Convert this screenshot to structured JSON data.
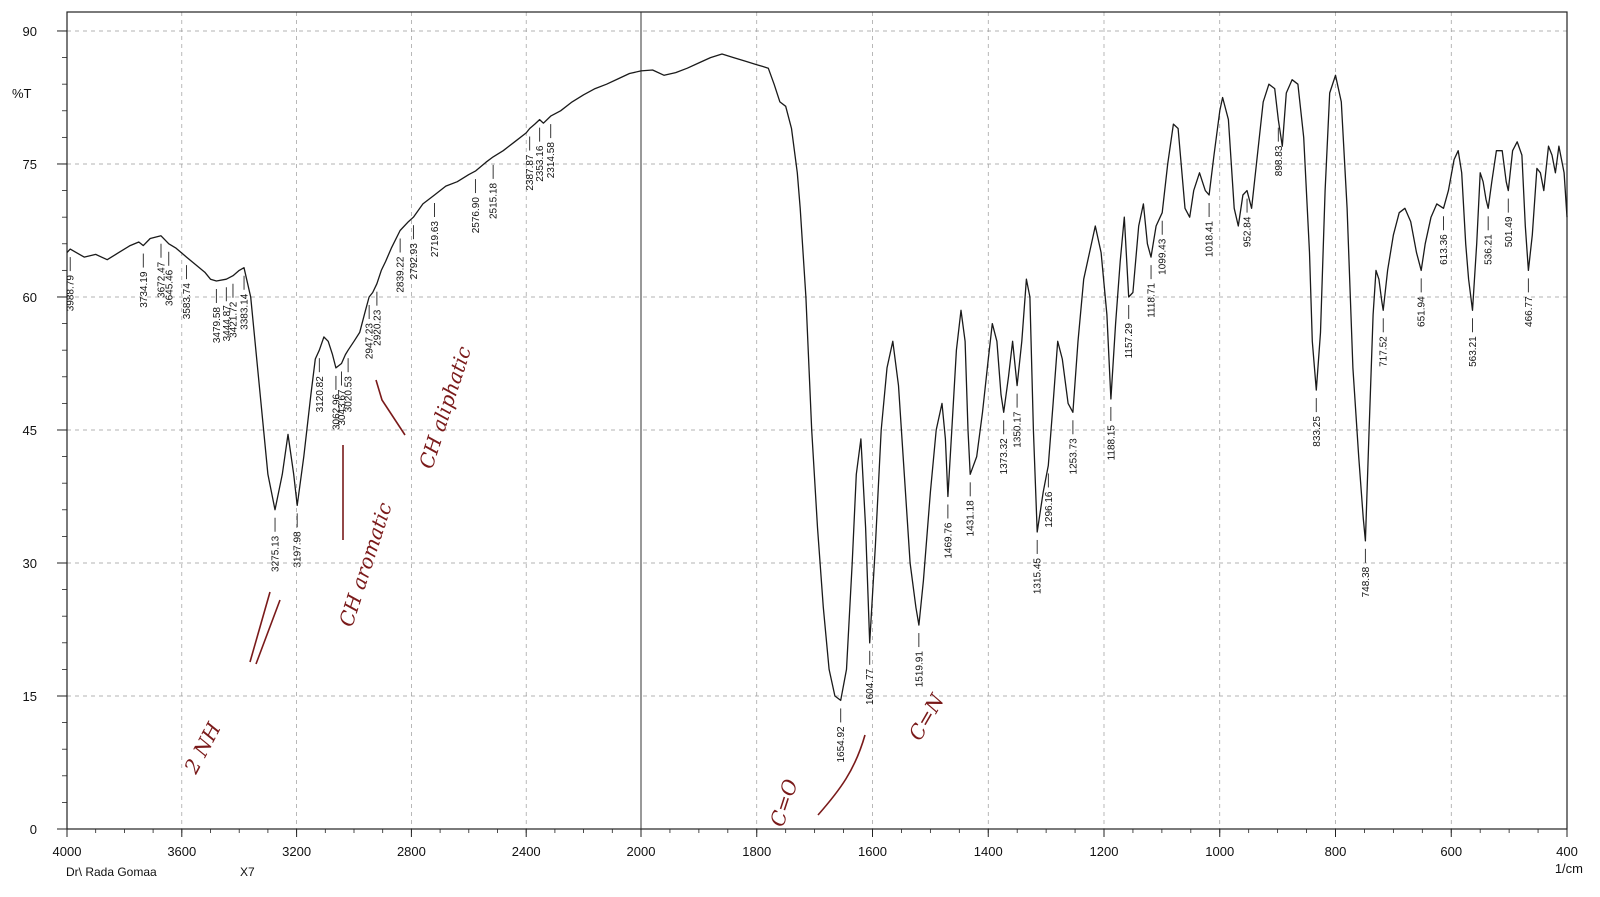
{
  "chart_data": {
    "type": "line",
    "ylabel": "%T",
    "xunit": "1/cm",
    "xlim": [
      4000,
      400
    ],
    "ylim": [
      0,
      92
    ],
    "x_ticks": [
      4000,
      3600,
      3200,
      2800,
      2400,
      2000,
      1800,
      1600,
      1400,
      1200,
      1000,
      800,
      600,
      400
    ],
    "y_ticks": [
      0,
      15,
      30,
      45,
      60,
      75,
      90
    ],
    "grid": true,
    "footer_left": "Dr\\ Rada Gomaa",
    "footer_code": "X7",
    "series": [
      {
        "color": "#1a1a1a",
        "points": [
          [
            4000,
            65.0
          ],
          [
            3988.79,
            65.4
          ],
          [
            3940,
            64.5
          ],
          [
            3900,
            64.8
          ],
          [
            3860,
            64.2
          ],
          [
            3820,
            65.0
          ],
          [
            3780,
            65.8
          ],
          [
            3750,
            66.2
          ],
          [
            3734.19,
            65.8
          ],
          [
            3710,
            66.6
          ],
          [
            3672.47,
            66.9
          ],
          [
            3645.46,
            66.0
          ],
          [
            3620,
            65.5
          ],
          [
            3583.74,
            64.5
          ],
          [
            3550,
            63.6
          ],
          [
            3520,
            62.8
          ],
          [
            3500,
            62.0
          ],
          [
            3479.58,
            61.8
          ],
          [
            3444.87,
            62.0
          ],
          [
            3421.72,
            62.4
          ],
          [
            3400,
            63.0
          ],
          [
            3383.14,
            63.3
          ],
          [
            3360,
            60.0
          ],
          [
            3330,
            50.0
          ],
          [
            3300,
            40.0
          ],
          [
            3275.13,
            36.0
          ],
          [
            3250,
            40.0
          ],
          [
            3230,
            44.5
          ],
          [
            3210,
            40.0
          ],
          [
            3197.98,
            36.5
          ],
          [
            3175,
            42.0
          ],
          [
            3150,
            49.0
          ],
          [
            3135,
            53.0
          ],
          [
            3120.82,
            54.0
          ],
          [
            3105,
            55.5
          ],
          [
            3090,
            55.0
          ],
          [
            3075,
            53.5
          ],
          [
            3062.96,
            52.0
          ],
          [
            3043.67,
            52.5
          ],
          [
            3030,
            53.5
          ],
          [
            3020.53,
            54.0
          ],
          [
            3000,
            55.0
          ],
          [
            2980,
            56.0
          ],
          [
            2960,
            58.5
          ],
          [
            2947.23,
            60.0
          ],
          [
            2935,
            60.5
          ],
          [
            2920.23,
            61.5
          ],
          [
            2905,
            63.0
          ],
          [
            2890,
            64.0
          ],
          [
            2870,
            65.5
          ],
          [
            2839.22,
            67.5
          ],
          [
            2810,
            68.5
          ],
          [
            2792.93,
            69.0
          ],
          [
            2760,
            70.5
          ],
          [
            2719.63,
            71.5
          ],
          [
            2680,
            72.5
          ],
          [
            2640,
            73.0
          ],
          [
            2600,
            73.8
          ],
          [
            2576.9,
            74.2
          ],
          [
            2540,
            75.2
          ],
          [
            2515.18,
            75.8
          ],
          [
            2480,
            76.5
          ],
          [
            2440,
            77.5
          ],
          [
            2400,
            78.5
          ],
          [
            2387.87,
            79.0
          ],
          [
            2370,
            79.5
          ],
          [
            2353.16,
            80.0
          ],
          [
            2340,
            79.6
          ],
          [
            2314.58,
            80.4
          ],
          [
            2280,
            81.0
          ],
          [
            2240,
            82.0
          ],
          [
            2200,
            82.8
          ],
          [
            2160,
            83.5
          ],
          [
            2120,
            84.0
          ],
          [
            2080,
            84.6
          ],
          [
            2040,
            85.2
          ],
          [
            2000,
            85.5
          ],
          [
            1980,
            85.6
          ],
          [
            1960,
            85.0
          ],
          [
            1940,
            85.3
          ],
          [
            1920,
            85.8
          ],
          [
            1900,
            86.4
          ],
          [
            1880,
            87.0
          ],
          [
            1860,
            87.4
          ],
          [
            1840,
            87.0
          ],
          [
            1820,
            86.6
          ],
          [
            1800,
            86.2
          ],
          [
            1790,
            86.0
          ],
          [
            1780,
            85.8
          ],
          [
            1770,
            84.0
          ],
          [
            1760,
            82.0
          ],
          [
            1750,
            81.5
          ],
          [
            1740,
            79.0
          ],
          [
            1730,
            74.0
          ],
          [
            1725,
            70.0
          ],
          [
            1715,
            60.0
          ],
          [
            1705,
            45.0
          ],
          [
            1695,
            34.0
          ],
          [
            1685,
            25.0
          ],
          [
            1675,
            18.0
          ],
          [
            1665,
            15.0
          ],
          [
            1654.92,
            14.5
          ],
          [
            1645,
            18.0
          ],
          [
            1635,
            30.0
          ],
          [
            1628,
            40.0
          ],
          [
            1620,
            44.0
          ],
          [
            1612,
            34.0
          ],
          [
            1604.77,
            21.0
          ],
          [
            1595,
            32.0
          ],
          [
            1585,
            45.0
          ],
          [
            1575,
            52.0
          ],
          [
            1565,
            55.0
          ],
          [
            1555,
            50.0
          ],
          [
            1545,
            40.0
          ],
          [
            1535,
            30.0
          ],
          [
            1525,
            25.0
          ],
          [
            1519.91,
            23.0
          ],
          [
            1512,
            28.0
          ],
          [
            1500,
            38.0
          ],
          [
            1490,
            45.0
          ],
          [
            1480,
            48.0
          ],
          [
            1474,
            44.0
          ],
          [
            1469.76,
            37.5
          ],
          [
            1463,
            45.0
          ],
          [
            1455,
            54.0
          ],
          [
            1447,
            58.5
          ],
          [
            1440,
            55.0
          ],
          [
            1435,
            45.0
          ],
          [
            1431.18,
            40.0
          ],
          [
            1420,
            42.0
          ],
          [
            1410,
            47.0
          ],
          [
            1400,
            53.0
          ],
          [
            1393,
            57.0
          ],
          [
            1385,
            55.0
          ],
          [
            1378,
            49.0
          ],
          [
            1373.32,
            47.0
          ],
          [
            1365,
            51.0
          ],
          [
            1358,
            55.0
          ],
          [
            1350.17,
            50.0
          ],
          [
            1342,
            55.0
          ],
          [
            1334,
            62.0
          ],
          [
            1328,
            60.0
          ],
          [
            1322,
            45.0
          ],
          [
            1315.45,
            33.5
          ],
          [
            1305,
            38.0
          ],
          [
            1296.16,
            41.0
          ],
          [
            1288,
            48.0
          ],
          [
            1280,
            55.0
          ],
          [
            1272,
            53.0
          ],
          [
            1262,
            48.0
          ],
          [
            1253.73,
            47.0
          ],
          [
            1245,
            55.0
          ],
          [
            1235,
            62.0
          ],
          [
            1225,
            65.0
          ],
          [
            1215,
            68.0
          ],
          [
            1205,
            65.0
          ],
          [
            1195,
            58.0
          ],
          [
            1188.15,
            48.5
          ],
          [
            1180,
            57.0
          ],
          [
            1172,
            64.0
          ],
          [
            1165,
            69.0
          ],
          [
            1157.29,
            60.0
          ],
          [
            1150,
            60.5
          ],
          [
            1140,
            68.0
          ],
          [
            1132,
            70.5
          ],
          [
            1125,
            66.0
          ],
          [
            1118.71,
            64.5
          ],
          [
            1110,
            68.0
          ],
          [
            1099.43,
            69.5
          ],
          [
            1090,
            75.0
          ],
          [
            1080,
            79.5
          ],
          [
            1072,
            79.0
          ],
          [
            1060,
            70.0
          ],
          [
            1052,
            69.0
          ],
          [
            1045,
            72.0
          ],
          [
            1035,
            74.0
          ],
          [
            1025,
            72.0
          ],
          [
            1018.41,
            71.5
          ],
          [
            1010,
            76.0
          ],
          [
            1000,
            81.0
          ],
          [
            995,
            82.5
          ],
          [
            985,
            80.0
          ],
          [
            975,
            70.0
          ],
          [
            968,
            68.0
          ],
          [
            960,
            71.5
          ],
          [
            952.84,
            72.0
          ],
          [
            945,
            70.0
          ],
          [
            935,
            76.0
          ],
          [
            925,
            82.0
          ],
          [
            915,
            84.0
          ],
          [
            905,
            83.5
          ],
          [
            898.83,
            80.0
          ],
          [
            892,
            77.0
          ],
          [
            885,
            83.0
          ],
          [
            875,
            84.5
          ],
          [
            865,
            84.0
          ],
          [
            855,
            78.0
          ],
          [
            845,
            65.0
          ],
          [
            840,
            55.0
          ],
          [
            833.25,
            49.5
          ],
          [
            826,
            56.0
          ],
          [
            818,
            72.0
          ],
          [
            810,
            83.0
          ],
          [
            800,
            85.0
          ],
          [
            790,
            82.0
          ],
          [
            780,
            70.0
          ],
          [
            770,
            52.0
          ],
          [
            760,
            42.0
          ],
          [
            752,
            35.0
          ],
          [
            748.38,
            32.5
          ],
          [
            742,
            45.0
          ],
          [
            735,
            58.0
          ],
          [
            730,
            63.0
          ],
          [
            725,
            62.0
          ],
          [
            720,
            59.5
          ],
          [
            717.52,
            58.5
          ],
          [
            710,
            63.0
          ],
          [
            700,
            67.0
          ],
          [
            690,
            69.5
          ],
          [
            680,
            70.0
          ],
          [
            670,
            68.5
          ],
          [
            660,
            65.0
          ],
          [
            651.94,
            63.0
          ],
          [
            645,
            66.0
          ],
          [
            635,
            69.0
          ],
          [
            625,
            70.5
          ],
          [
            613.36,
            70.0
          ],
          [
            605,
            72.0
          ],
          [
            595,
            75.5
          ],
          [
            588,
            76.5
          ],
          [
            582,
            74.0
          ],
          [
            575,
            66.0
          ],
          [
            570,
            62.0
          ],
          [
            563.21,
            58.5
          ],
          [
            556,
            66.0
          ],
          [
            550,
            74.0
          ],
          [
            545,
            73.0
          ],
          [
            540,
            71.0
          ],
          [
            536.21,
            70.0
          ],
          [
            530,
            73.0
          ],
          [
            522,
            76.5
          ],
          [
            512,
            76.5
          ],
          [
            505,
            73.0
          ],
          [
            501.49,
            72.0
          ],
          [
            494,
            76.5
          ],
          [
            486,
            77.5
          ],
          [
            478,
            76.0
          ],
          [
            472,
            68.0
          ],
          [
            466.77,
            63.0
          ],
          [
            460,
            67.0
          ],
          [
            452,
            74.5
          ],
          [
            446,
            74.0
          ],
          [
            440,
            72.0
          ],
          [
            432,
            77.0
          ],
          [
            426,
            76.0
          ],
          [
            420,
            74.0
          ],
          [
            414,
            77.0
          ],
          [
            405,
            74.0
          ],
          [
            400,
            69.0
          ]
        ]
      }
    ],
    "peak_labels": [
      {
        "x": 3988.79,
        "label": "3988.79"
      },
      {
        "x": 3734.19,
        "label": "3734.19"
      },
      {
        "x": 3672.47,
        "label": "3672.47"
      },
      {
        "x": 3645.46,
        "label": "3645.46"
      },
      {
        "x": 3583.74,
        "label": "3583.74"
      },
      {
        "x": 3479.58,
        "label": "3479.58"
      },
      {
        "x": 3444.87,
        "label": "3444.87"
      },
      {
        "x": 3421.72,
        "label": "3421.72"
      },
      {
        "x": 3383.14,
        "label": "3383.14"
      },
      {
        "x": 3275.13,
        "label": "3275.13"
      },
      {
        "x": 3197.98,
        "label": "3197.98"
      },
      {
        "x": 3120.82,
        "label": "3120.82"
      },
      {
        "x": 3062.96,
        "label": "3062.96"
      },
      {
        "x": 3043.67,
        "label": "3043.67"
      },
      {
        "x": 3020.53,
        "label": "3020.53"
      },
      {
        "x": 2947.23,
        "label": "2947.23"
      },
      {
        "x": 2920.23,
        "label": "2920.23"
      },
      {
        "x": 2839.22,
        "label": "2839.22"
      },
      {
        "x": 2792.93,
        "label": "2792.93"
      },
      {
        "x": 2719.63,
        "label": "2719.63"
      },
      {
        "x": 2576.9,
        "label": "2576.90"
      },
      {
        "x": 2515.18,
        "label": "2515.18"
      },
      {
        "x": 2387.87,
        "label": "2387.87"
      },
      {
        "x": 2353.16,
        "label": "2353.16"
      },
      {
        "x": 2314.58,
        "label": "2314.58"
      },
      {
        "x": 1654.92,
        "label": "1654.92"
      },
      {
        "x": 1604.77,
        "label": "1604.77"
      },
      {
        "x": 1519.91,
        "label": "1519.91"
      },
      {
        "x": 1469.76,
        "label": "1469.76"
      },
      {
        "x": 1431.18,
        "label": "1431.18"
      },
      {
        "x": 1373.32,
        "label": "1373.32"
      },
      {
        "x": 1350.17,
        "label": "1350.17"
      },
      {
        "x": 1315.45,
        "label": "1315.45"
      },
      {
        "x": 1296.16,
        "label": "1296.16"
      },
      {
        "x": 1253.73,
        "label": "1253.73"
      },
      {
        "x": 1188.15,
        "label": "1188.15"
      },
      {
        "x": 1157.29,
        "label": "1157.29"
      },
      {
        "x": 1118.71,
        "label": "1118.71"
      },
      {
        "x": 1099.43,
        "label": "1099.43"
      },
      {
        "x": 1018.41,
        "label": "1018.41"
      },
      {
        "x": 952.84,
        "label": "952.84"
      },
      {
        "x": 898.83,
        "label": "898.83"
      },
      {
        "x": 833.25,
        "label": "833.25"
      },
      {
        "x": 748.38,
        "label": "748.38"
      },
      {
        "x": 717.52,
        "label": "717.52"
      },
      {
        "x": 651.94,
        "label": "651.94"
      },
      {
        "x": 613.36,
        "label": "613.36"
      },
      {
        "x": 563.21,
        "label": "563.21"
      },
      {
        "x": 536.21,
        "label": "536.21"
      },
      {
        "x": 501.49,
        "label": "501.49"
      },
      {
        "x": 466.77,
        "label": "466.77"
      }
    ],
    "annotations": [
      {
        "text": "2 NH",
        "color": "#7a1a1a"
      },
      {
        "text": "CH aromatic",
        "color": "#7a1a1a"
      },
      {
        "text": "CH aliphatic",
        "color": "#7a1a1a"
      },
      {
        "text": "C=O",
        "color": "#7a1a1a"
      },
      {
        "text": "C=N",
        "color": "#7a1a1a"
      }
    ]
  }
}
